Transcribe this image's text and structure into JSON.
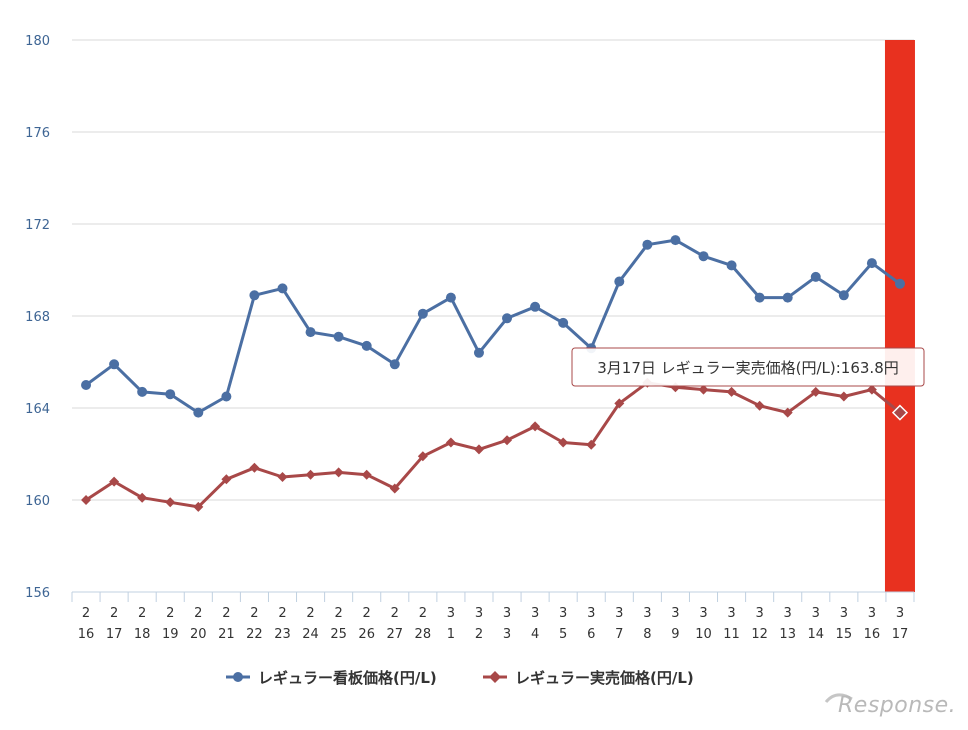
{
  "chart_data": {
    "type": "line",
    "title": "",
    "xlabel": "",
    "ylabel": "",
    "ylim": [
      156,
      180
    ],
    "yticks": [
      156,
      160,
      164,
      168,
      172,
      176,
      180
    ],
    "grid": true,
    "legend_position": "bottom",
    "categories": [
      {
        "month": "2",
        "day": "16"
      },
      {
        "month": "2",
        "day": "17"
      },
      {
        "month": "2",
        "day": "18"
      },
      {
        "month": "2",
        "day": "19"
      },
      {
        "month": "2",
        "day": "20"
      },
      {
        "month": "2",
        "day": "21"
      },
      {
        "month": "2",
        "day": "22"
      },
      {
        "month": "2",
        "day": "23"
      },
      {
        "month": "2",
        "day": "24"
      },
      {
        "month": "2",
        "day": "25"
      },
      {
        "month": "2",
        "day": "26"
      },
      {
        "month": "2",
        "day": "27"
      },
      {
        "month": "2",
        "day": "28"
      },
      {
        "month": "3",
        "day": "1"
      },
      {
        "month": "3",
        "day": "2"
      },
      {
        "month": "3",
        "day": "3"
      },
      {
        "month": "3",
        "day": "4"
      },
      {
        "month": "3",
        "day": "5"
      },
      {
        "month": "3",
        "day": "6"
      },
      {
        "month": "3",
        "day": "7"
      },
      {
        "month": "3",
        "day": "8"
      },
      {
        "month": "3",
        "day": "9"
      },
      {
        "month": "3",
        "day": "10"
      },
      {
        "month": "3",
        "day": "11"
      },
      {
        "month": "3",
        "day": "12"
      },
      {
        "month": "3",
        "day": "13"
      },
      {
        "month": "3",
        "day": "14"
      },
      {
        "month": "3",
        "day": "15"
      },
      {
        "month": "3",
        "day": "16"
      },
      {
        "month": "3",
        "day": "17"
      }
    ],
    "series": [
      {
        "name": "レギュラー看板価格(円/L)",
        "color": "#4b6fa3",
        "marker": "circle",
        "values": [
          165.0,
          165.9,
          164.7,
          164.6,
          163.8,
          164.5,
          168.9,
          169.2,
          167.3,
          167.1,
          166.7,
          165.9,
          168.1,
          168.8,
          166.4,
          167.9,
          168.4,
          167.7,
          166.6,
          169.5,
          171.1,
          171.3,
          170.6,
          170.2,
          168.8,
          168.8,
          169.7,
          168.9,
          170.3,
          169.4
        ]
      },
      {
        "name": "レギュラー実売価格(円/L)",
        "color": "#a84848",
        "marker": "diamond",
        "values": [
          160.0,
          160.8,
          160.1,
          159.9,
          159.7,
          160.9,
          161.4,
          161.0,
          161.1,
          161.2,
          161.1,
          160.5,
          161.9,
          162.5,
          162.2,
          162.6,
          163.2,
          162.5,
          162.4,
          164.2,
          165.1,
          164.9,
          164.8,
          164.7,
          164.1,
          163.8,
          164.7,
          164.5,
          164.8,
          163.8
        ]
      }
    ],
    "highlight": {
      "index": 29,
      "color": "#e8311f"
    },
    "tooltip": {
      "text": "3月17日 レギュラー実売価格(円/L):163.8円",
      "series_index": 1,
      "point_index": 29
    }
  },
  "watermark": {
    "text": "Response."
  }
}
